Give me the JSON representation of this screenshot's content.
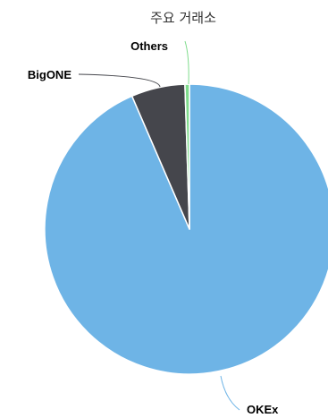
{
  "chart_data": {
    "type": "pie",
    "title": "주요 거래소",
    "start_angle_deg": 0,
    "direction": "clockwise",
    "slices": [
      {
        "label": "OKEx",
        "value": 93.5,
        "color": "#6eb4e6"
      },
      {
        "label": "BigONE",
        "value": 6.0,
        "color": "#45464c"
      },
      {
        "label": "Others",
        "value": 0.5,
        "color": "#7fdc8c"
      }
    ]
  }
}
